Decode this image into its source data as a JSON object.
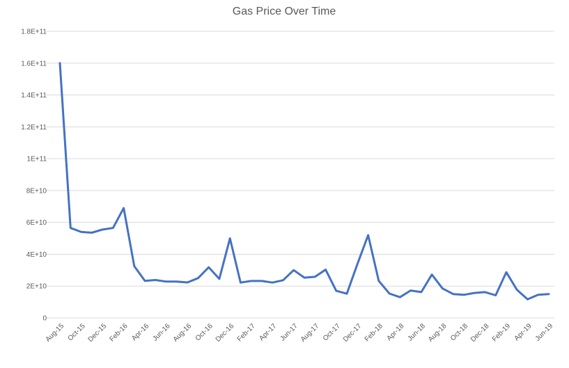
{
  "chart_data": {
    "type": "line",
    "title": "Gas Price Over Time",
    "xlabel": "",
    "ylabel": "",
    "ylim": [
      0,
      180000000000
    ],
    "y_ticks": [
      {
        "value": 0,
        "label": "0"
      },
      {
        "value": 20000000000,
        "label": "2E+10"
      },
      {
        "value": 40000000000,
        "label": "4E+10"
      },
      {
        "value": 60000000000,
        "label": "6E+10"
      },
      {
        "value": 80000000000,
        "label": "8E+10"
      },
      {
        "value": 100000000000,
        "label": "1E+11"
      },
      {
        "value": 120000000000,
        "label": "1.2E+11"
      },
      {
        "value": 140000000000,
        "label": "1.4E+11"
      },
      {
        "value": 160000000000,
        "label": "1.6E+11"
      },
      {
        "value": 180000000000,
        "label": "1.8E+11"
      }
    ],
    "categories": [
      "Aug-15",
      "Sep-15",
      "Oct-15",
      "Nov-15",
      "Dec-15",
      "Jan-16",
      "Feb-16",
      "Mar-16",
      "Apr-16",
      "May-16",
      "Jun-16",
      "Jul-16",
      "Aug-16",
      "Sep-16",
      "Oct-16",
      "Nov-16",
      "Dec-16",
      "Jan-17",
      "Feb-17",
      "Mar-17",
      "Apr-17",
      "May-17",
      "Jun-17",
      "Jul-17",
      "Aug-17",
      "Sep-17",
      "Oct-17",
      "Nov-17",
      "Dec-17",
      "Jan-18",
      "Feb-18",
      "Mar-18",
      "Apr-18",
      "May-18",
      "Jun-18",
      "Jul-18",
      "Aug-18",
      "Sep-18",
      "Oct-18",
      "Nov-18",
      "Dec-18",
      "Jan-19",
      "Feb-19",
      "Mar-19",
      "Apr-19",
      "May-19",
      "Jun-19"
    ],
    "x_tick_labels": [
      "Aug-15",
      "Oct-15",
      "Dec-15",
      "Feb-16",
      "Apr-16",
      "Jun-16",
      "Aug-16",
      "Oct-16",
      "Dec-16",
      "Feb-17",
      "Apr-17",
      "Jun-17",
      "Aug-17",
      "Oct-17",
      "Dec-17",
      "Feb-18",
      "Apr-18",
      "Jun-18",
      "Aug-18",
      "Oct-18",
      "Dec-18",
      "Feb-19",
      "Apr-19",
      "Jun-19"
    ],
    "series": [
      {
        "values": [
          160000000000,
          56500000000,
          54000000000,
          53500000000,
          55500000000,
          56500000000,
          69000000000,
          32500000000,
          23300000000,
          23800000000,
          22800000000,
          22800000000,
          22300000000,
          25000000000,
          31800000000,
          24500000000,
          50000000000,
          22200000000,
          23200000000,
          23200000000,
          22200000000,
          23700000000,
          30000000000,
          25300000000,
          25800000000,
          30300000000,
          17000000000,
          15200000000,
          34000000000,
          52000000000,
          23300000000,
          15300000000,
          13000000000,
          17200000000,
          16200000000,
          27200000000,
          18500000000,
          15000000000,
          14500000000,
          15700000000,
          16200000000,
          14200000000,
          28700000000,
          17700000000,
          11700000000,
          14500000000,
          15000000000
        ]
      }
    ],
    "grid": true,
    "legend": "none",
    "colors": {
      "line": "#4472c4",
      "grid": "#d9d9d9",
      "text": "#595959"
    }
  }
}
